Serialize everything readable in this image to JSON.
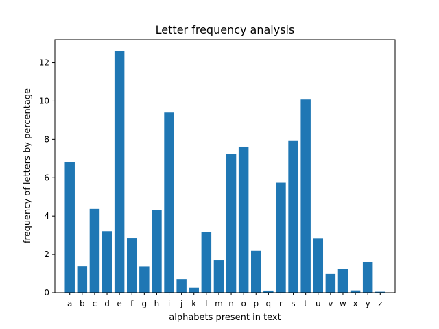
{
  "chart_data": {
    "type": "bar",
    "title": "Letter frequency analysis",
    "xlabel": "alphabets present in text",
    "ylabel": "frequency of letters by percentage",
    "categories": [
      "a",
      "b",
      "c",
      "d",
      "e",
      "f",
      "g",
      "h",
      "i",
      "j",
      "k",
      "l",
      "m",
      "n",
      "o",
      "p",
      "q",
      "r",
      "s",
      "t",
      "u",
      "v",
      "w",
      "x",
      "y",
      "z"
    ],
    "values": [
      6.82,
      1.39,
      4.37,
      3.21,
      12.6,
      2.86,
      1.38,
      4.3,
      9.4,
      0.71,
      0.26,
      3.16,
      1.68,
      7.26,
      7.62,
      2.19,
      0.11,
      5.74,
      7.95,
      10.08,
      2.85,
      0.97,
      1.22,
      0.12,
      1.61,
      0.05
    ],
    "ylim": [
      0,
      13.2
    ],
    "yticks": [
      0,
      2,
      4,
      6,
      8,
      10,
      12
    ],
    "grid": false,
    "bar_color": "#1f77b4"
  }
}
